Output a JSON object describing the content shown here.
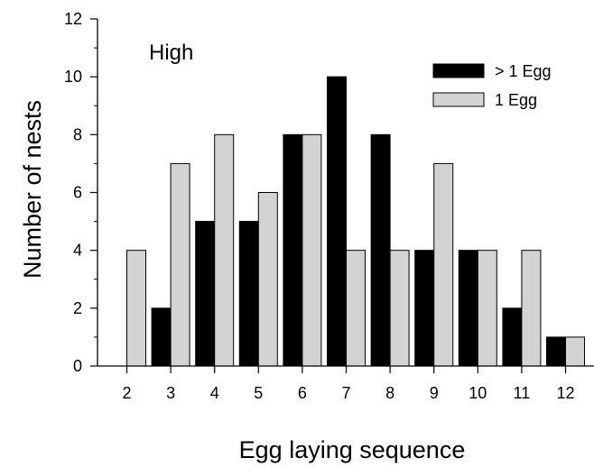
{
  "chart_data": {
    "type": "bar",
    "title": "",
    "annotation": "High",
    "xlabel": "Egg laying sequence",
    "ylabel": "Number of nests",
    "categories": [
      "2",
      "3",
      "4",
      "5",
      "6",
      "7",
      "8",
      "9",
      "10",
      "11",
      "12"
    ],
    "ylim": [
      0,
      12
    ],
    "yticks": [
      0,
      2,
      4,
      6,
      8,
      10,
      12
    ],
    "grid": false,
    "legend_position": "top-right",
    "series": [
      {
        "name": "> 1 Egg",
        "color": "#000000",
        "values": [
          0,
          2,
          5,
          5,
          8,
          10,
          8,
          4,
          4,
          2,
          1
        ]
      },
      {
        "name": "1 Egg",
        "color": "#d3d3d3",
        "values": [
          4,
          7,
          8,
          6,
          8,
          4,
          4,
          7,
          4,
          4,
          1
        ]
      }
    ]
  }
}
